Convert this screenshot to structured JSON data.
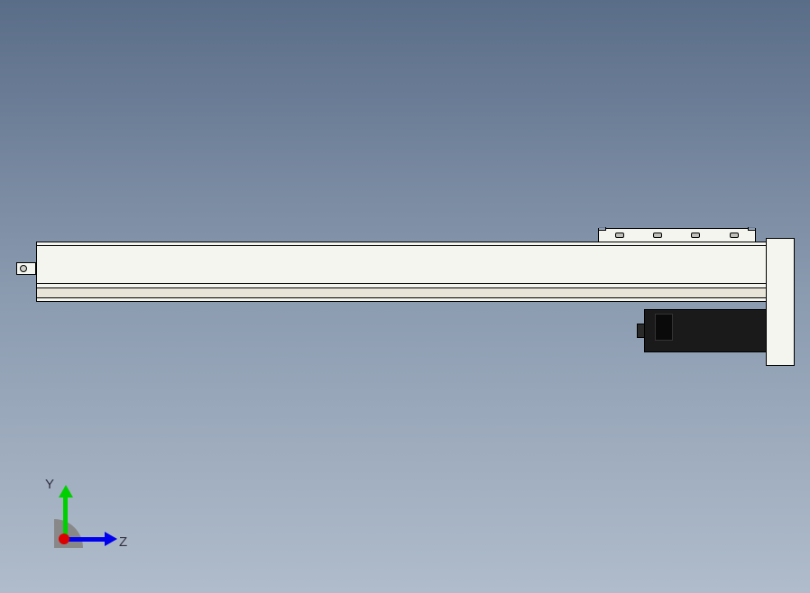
{
  "viewport": {
    "background_gradient": {
      "top": "#5a6d88",
      "mid": "#8b9bb0",
      "bottom": "#b0bccb"
    }
  },
  "model": {
    "type": "linear_actuator_assembly",
    "rail": {
      "color": "#f5f5f0",
      "stroke": "#000000",
      "bottom_strip_color": "#e8e5d8"
    },
    "motor": {
      "body_color": "#1a1a1a",
      "connector_color": "#0a0a0a"
    },
    "bracket": {
      "color": "#f5f5f0",
      "hole_color": "#c0c0b8"
    }
  },
  "triad": {
    "axes": {
      "y": {
        "label": "Y",
        "color": "#00d000"
      },
      "z": {
        "label": "Z",
        "color": "#0000ee"
      },
      "x": {
        "label": "",
        "color": "#dd0000"
      }
    },
    "origin_color": "#808080"
  }
}
